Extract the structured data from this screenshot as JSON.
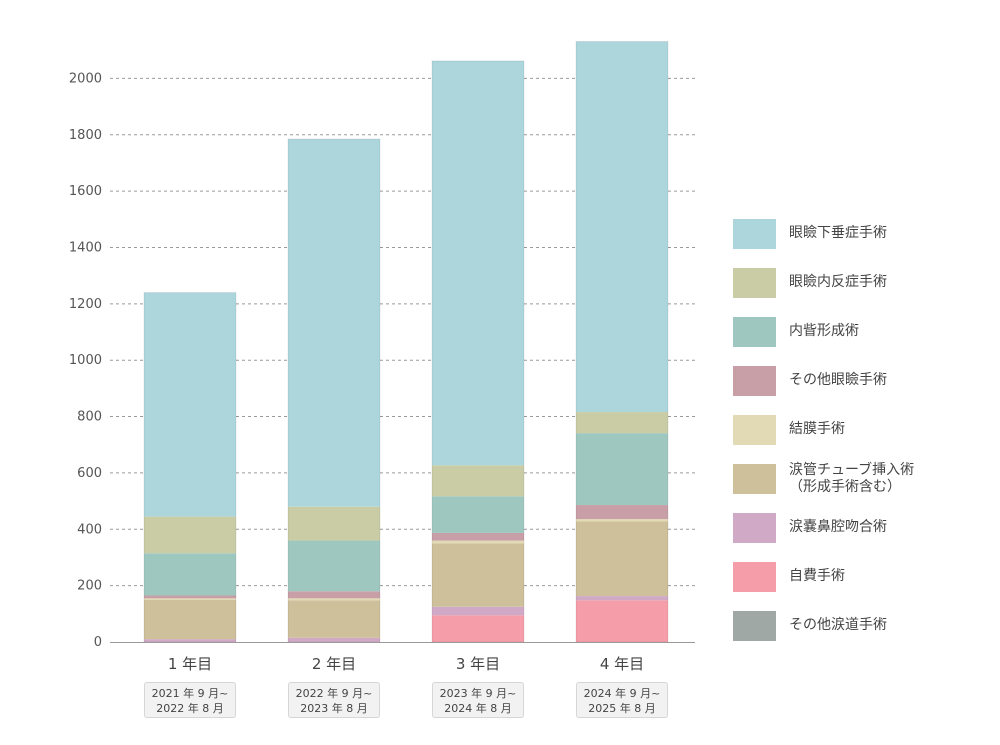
{
  "chart_data": {
    "type": "bar",
    "stacked": true,
    "categories": [
      "1 年目",
      "2 年目",
      "3 年目",
      "4 年目"
    ],
    "periods": [
      [
        "2021 年 9 月~",
        "2022 年 8 月"
      ],
      [
        "2022 年 9 月~",
        "2023 年 8 月"
      ],
      [
        "2023 年 9 月~",
        "2024 年 8 月"
      ],
      [
        "2024 年 9 月~",
        "2025 年 8 月"
      ]
    ],
    "ylim": [
      0,
      2150
    ],
    "yticks": [
      0,
      200,
      400,
      600,
      800,
      1000,
      1200,
      1400,
      1600,
      1800,
      2000
    ],
    "grid": true,
    "legend_position": "right",
    "series": [
      {
        "name": "その他涙道手術",
        "color": "#a0a8a6",
        "values": [
          0,
          0,
          0,
          0
        ]
      },
      {
        "name": "自費手術",
        "color": "#f59da8",
        "values": [
          0,
          0,
          95,
          148
        ]
      },
      {
        "name": "涙嚢鼻腔吻合術",
        "color": "#d0a9c6",
        "values": [
          10,
          15,
          30,
          15
        ]
      },
      {
        "name": "涙管チューブ挿入術\n（形成手術含む）",
        "color": "#cdc09a",
        "values": [
          140,
          133,
          225,
          265
        ]
      },
      {
        "name": "結膜手術",
        "color": "#e2dab4",
        "values": [
          5,
          7,
          10,
          8
        ]
      },
      {
        "name": "その他眼瞼手術",
        "color": "#c89fa6",
        "values": [
          10,
          25,
          27,
          50
        ]
      },
      {
        "name": "内眥形成術",
        "color": "#9ec7c0",
        "values": [
          150,
          180,
          130,
          255
        ]
      },
      {
        "name": "眼瞼内反症手術",
        "color": "#c9cca5",
        "values": [
          130,
          120,
          110,
          75
        ]
      },
      {
        "name": "眼瞼下垂症手術",
        "color": "#acd6dc",
        "values": [
          795,
          1305,
          1435,
          1315
        ]
      }
    ]
  },
  "legend_order": [
    "眼瞼下垂症手術",
    "眼瞼内反症手術",
    "内眥形成術",
    "その他眼瞼手術",
    "結膜手術",
    "涙管チューブ挿入術\n（形成手術含む）",
    "涙嚢鼻腔吻合術",
    "自費手術",
    "その他涙道手術"
  ]
}
